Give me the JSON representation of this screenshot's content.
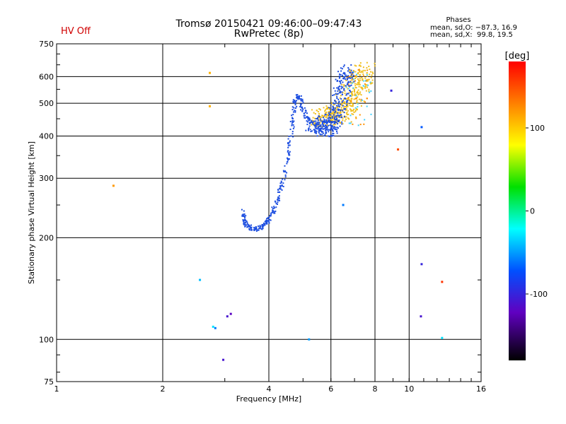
{
  "header": {
    "status": "HV Off",
    "title_line1": "Tromsø 20150421 09:46:00–09:47:43",
    "title_line2": "RwPretec (8p)",
    "phases_title": "Phases",
    "phases_o": "mean, sd,O: −87.3, 16.9",
    "phases_x": "mean, sd,X:  99.8, 19.5"
  },
  "colors": {
    "status": "#d00000",
    "o_mode": "#1e4fe0",
    "x_mode": "#f0c020"
  },
  "chart_data": {
    "type": "scatter",
    "xlabel": "Frequency [MHz]",
    "ylabel": "Stationary phase Virtual Height [km]",
    "xscale": "log",
    "yscale": "log",
    "xlim": [
      1,
      16
    ],
    "ylim": [
      75,
      750
    ],
    "xticks": [
      1,
      2,
      4,
      6,
      8,
      10,
      16
    ],
    "yticks": [
      75,
      100,
      200,
      300,
      400,
      500,
      600,
      750
    ],
    "grid": true,
    "colorbar": {
      "label": "[deg]",
      "range": [
        -180,
        180
      ],
      "ticks": [
        100,
        0,
        -100
      ]
    },
    "o_trace": [
      {
        "f": 3.4,
        "h": 240
      },
      {
        "f": 3.4,
        "h": 225
      },
      {
        "f": 3.45,
        "h": 218
      },
      {
        "f": 3.55,
        "h": 214
      },
      {
        "f": 3.65,
        "h": 212
      },
      {
        "f": 3.75,
        "h": 213
      },
      {
        "f": 3.85,
        "h": 216
      },
      {
        "f": 3.95,
        "h": 222
      },
      {
        "f": 4.05,
        "h": 232
      },
      {
        "f": 4.15,
        "h": 245
      },
      {
        "f": 4.25,
        "h": 262
      },
      {
        "f": 4.35,
        "h": 285
      },
      {
        "f": 4.45,
        "h": 315
      },
      {
        "f": 4.55,
        "h": 355
      },
      {
        "f": 4.62,
        "h": 400
      },
      {
        "f": 4.68,
        "h": 450
      },
      {
        "f": 4.75,
        "h": 500
      },
      {
        "f": 4.82,
        "h": 530
      },
      {
        "f": 4.9,
        "h": 515
      },
      {
        "f": 5.0,
        "h": 480
      },
      {
        "f": 5.12,
        "h": 455
      },
      {
        "f": 5.28,
        "h": 440
      },
      {
        "f": 5.45,
        "h": 428
      },
      {
        "f": 5.6,
        "h": 420
      },
      {
        "f": 5.8,
        "h": 420
      },
      {
        "f": 6.0,
        "h": 430
      },
      {
        "f": 6.15,
        "h": 450
      },
      {
        "f": 6.3,
        "h": 490
      },
      {
        "f": 6.45,
        "h": 540
      },
      {
        "f": 6.6,
        "h": 590
      },
      {
        "f": 6.75,
        "h": 630
      }
    ],
    "x_trace": [
      {
        "f": 5.55,
        "h": 455
      },
      {
        "f": 5.8,
        "h": 455
      },
      {
        "f": 6.1,
        "h": 455
      },
      {
        "f": 6.4,
        "h": 470
      },
      {
        "f": 6.7,
        "h": 500
      },
      {
        "f": 7.0,
        "h": 540
      },
      {
        "f": 7.25,
        "h": 585
      },
      {
        "f": 7.5,
        "h": 625
      }
    ],
    "scattered_points": [
      {
        "f": 1.45,
        "h": 285,
        "phase": 120
      },
      {
        "f": 2.72,
        "h": 615,
        "phase": 110
      },
      {
        "f": 2.72,
        "h": 490,
        "phase": 110
      },
      {
        "f": 2.55,
        "h": 150,
        "phase": -40
      },
      {
        "f": 2.78,
        "h": 109,
        "phase": -30
      },
      {
        "f": 2.82,
        "h": 108,
        "phase": -60
      },
      {
        "f": 3.05,
        "h": 117,
        "phase": -110
      },
      {
        "f": 3.12,
        "h": 119,
        "phase": -120
      },
      {
        "f": 2.97,
        "h": 87,
        "phase": -110
      },
      {
        "f": 5.2,
        "h": 100,
        "phase": -50
      },
      {
        "f": 6.5,
        "h": 250,
        "phase": -60
      },
      {
        "f": 8.9,
        "h": 545,
        "phase": -100
      },
      {
        "f": 9.3,
        "h": 365,
        "phase": 150
      },
      {
        "f": 10.85,
        "h": 425,
        "phase": -70
      },
      {
        "f": 10.85,
        "h": 167,
        "phase": -100
      },
      {
        "f": 10.8,
        "h": 117,
        "phase": -110
      },
      {
        "f": 12.4,
        "h": 148,
        "phase": 160
      },
      {
        "f": 12.4,
        "h": 101,
        "phase": -30
      }
    ]
  }
}
